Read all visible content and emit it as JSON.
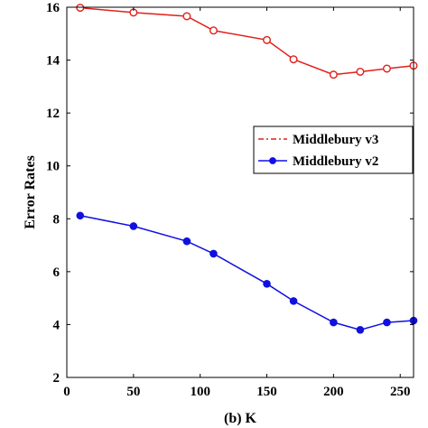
{
  "chart_data": {
    "type": "line",
    "title": "",
    "xlabel": "(b) K",
    "ylabel": "Error Rates",
    "xlim": [
      0,
      260
    ],
    "ylim": [
      2,
      16
    ],
    "xticks": [
      0,
      50,
      100,
      150,
      200,
      250
    ],
    "yticks": [
      2,
      4,
      6,
      8,
      10,
      12,
      14,
      16
    ],
    "grid": false,
    "legend_position": "right",
    "series": [
      {
        "name": "Middlebury v3",
        "color": "#e0201b",
        "line_style": "dash-dot",
        "marker": "open-circle",
        "x": [
          10,
          50,
          90,
          110,
          150,
          170,
          200,
          220,
          240,
          260
        ],
        "y": [
          15.98,
          15.8,
          15.66,
          15.12,
          14.76,
          14.03,
          13.45,
          13.56,
          13.68,
          13.79
        ]
      },
      {
        "name": "Middlebury v2",
        "color": "#1010e0",
        "line_style": "solid",
        "marker": "filled-circle",
        "x": [
          10,
          50,
          90,
          110,
          150,
          170,
          200,
          220,
          240,
          260
        ],
        "y": [
          8.12,
          7.72,
          7.15,
          6.68,
          5.54,
          4.89,
          4.08,
          3.8,
          4.08,
          4.15
        ]
      }
    ]
  }
}
